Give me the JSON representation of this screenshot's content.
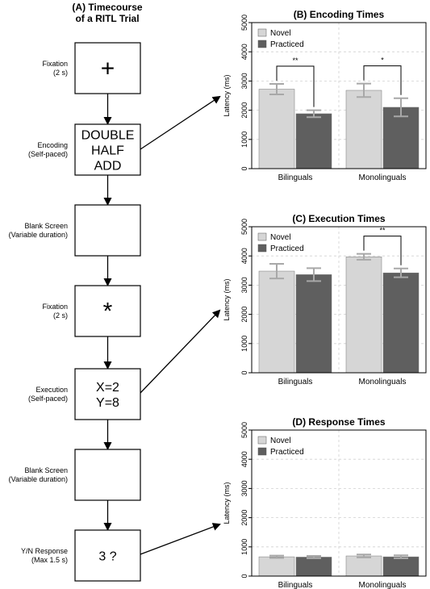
{
  "timecourse": {
    "title_line1": "(A) Timecourse",
    "title_line2": "of a RITL Trial",
    "steps": [
      {
        "label": [
          "Fixation",
          "(2 s)"
        ],
        "content": [
          "+"
        ]
      },
      {
        "label": [
          "Encoding",
          "(Self-paced)"
        ],
        "content": [
          "DOUBLE",
          "HALF",
          "ADD"
        ]
      },
      {
        "label": [
          "Blank Screen",
          "(Variable duration)"
        ],
        "content": []
      },
      {
        "label": [
          "Fixation",
          "(2 s)"
        ],
        "content": [
          "*"
        ]
      },
      {
        "label": [
          "Execution",
          "(Self-paced)"
        ],
        "content": [
          "X=2",
          "Y=8"
        ]
      },
      {
        "label": [
          "Blank Screen",
          "(Variable duration)"
        ],
        "content": []
      },
      {
        "label": [
          "Y/N Response",
          "(Max 1.5 s)"
        ],
        "content": [
          "3 ?"
        ]
      }
    ]
  },
  "colors": {
    "novel": "#d6d6d6",
    "practiced": "#5f5f5f",
    "errorbar": "#a8a8a8",
    "grid": "#d0d0d0"
  },
  "chart_data": [
    {
      "type": "bar",
      "title": "(B) Encoding Times",
      "ylabel": "Latency (ms)",
      "ylim": [
        0,
        5000
      ],
      "yticks": [
        0,
        1000,
        2000,
        3000,
        4000,
        5000
      ],
      "categories": [
        "Bilinguals",
        "Monolinguals"
      ],
      "legend": "top-left",
      "grid": true,
      "series": [
        {
          "name": "Novel",
          "values": [
            2720,
            2680
          ],
          "errors": [
            180,
            230
          ]
        },
        {
          "name": "Practiced",
          "values": [
            1880,
            2100
          ],
          "errors": [
            120,
            310
          ]
        }
      ],
      "significance": [
        "**",
        "*"
      ]
    },
    {
      "type": "bar",
      "title": "(C) Execution Times",
      "ylabel": "Latency (ms)",
      "ylim": [
        0,
        5000
      ],
      "yticks": [
        0,
        1000,
        2000,
        3000,
        4000,
        5000
      ],
      "categories": [
        "Bilinguals",
        "Monolinguals"
      ],
      "legend": "top-left",
      "grid": true,
      "series": [
        {
          "name": "Novel",
          "values": [
            3480,
            3970
          ],
          "errors": [
            250,
            100
          ]
        },
        {
          "name": "Practiced",
          "values": [
            3360,
            3420
          ],
          "errors": [
            220,
            150
          ]
        }
      ],
      "significance": [
        "",
        "**"
      ]
    },
    {
      "type": "bar",
      "title": "(D) Response Times",
      "ylabel": "Latency (ms)",
      "ylim": [
        0,
        5000
      ],
      "yticks": [
        0,
        1000,
        2000,
        3000,
        4000,
        5000
      ],
      "categories": [
        "Bilinguals",
        "Monolinguals"
      ],
      "legend": "top-left",
      "grid": true,
      "series": [
        {
          "name": "Novel",
          "values": [
            660,
            690
          ],
          "errors": [
            40,
            50
          ]
        },
        {
          "name": "Practiced",
          "values": [
            650,
            660
          ],
          "errors": [
            40,
            50
          ]
        }
      ],
      "significance": [
        "",
        ""
      ]
    }
  ]
}
